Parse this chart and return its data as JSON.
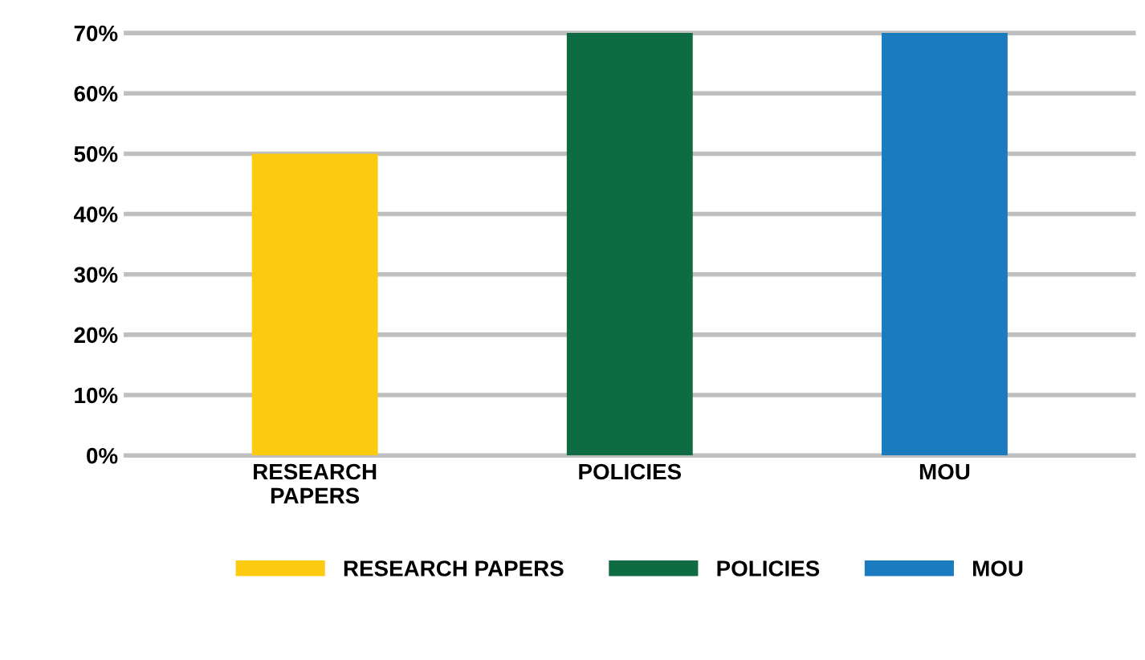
{
  "chart_data": {
    "type": "bar",
    "categories": [
      "RESEARCH\nPAPERS",
      "POLICIES",
      "MOU"
    ],
    "series": [
      {
        "name": "RESEARCH PAPERS",
        "color": "#fccb0f",
        "values": [
          50,
          null,
          null
        ]
      },
      {
        "name": "POLICIES",
        "color": "#0e6b42",
        "values": [
          null,
          70,
          null
        ]
      },
      {
        "name": "MOU",
        "color": "#1b7bbf",
        "values": [
          null,
          null,
          70
        ]
      }
    ],
    "ylim": [
      0,
      70
    ],
    "yticks": [
      {
        "value": 0,
        "label": "0%"
      },
      {
        "value": 10,
        "label": "10%"
      },
      {
        "value": 20,
        "label": "20%"
      },
      {
        "value": 30,
        "label": "30%"
      },
      {
        "value": 40,
        "label": "40%"
      },
      {
        "value": 50,
        "label": "50%"
      },
      {
        "value": 60,
        "label": "60%"
      },
      {
        "value": 70,
        "label": "70%"
      }
    ],
    "grid": "y",
    "legend": "bottom"
  }
}
